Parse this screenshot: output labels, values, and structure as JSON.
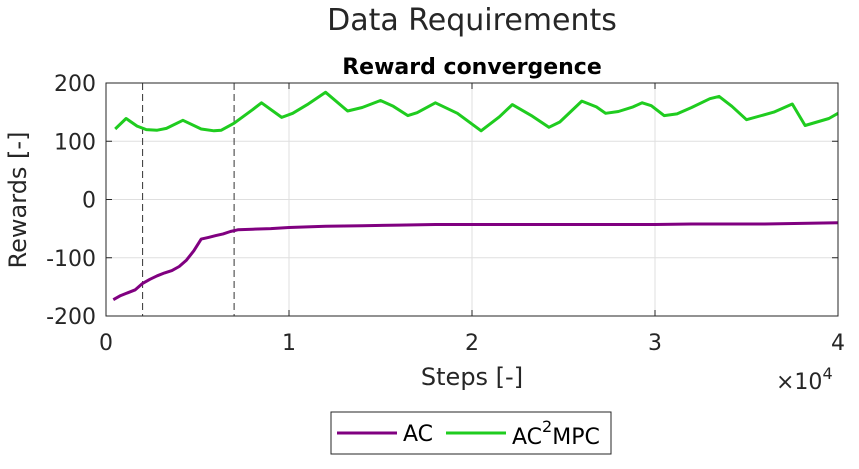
{
  "figure": {
    "suptitle": "Data Requirements"
  },
  "chart_data": {
    "type": "line",
    "title": "Reward convergence",
    "xlabel": "Steps [-]",
    "ylabel": "Rewards [-]",
    "x_multiplier": {
      "base": "×10",
      "exponent": "4"
    },
    "xlim": [
      0,
      40000
    ],
    "ylim": [
      -200,
      200
    ],
    "x_ticks": [
      0,
      10000,
      20000,
      30000,
      40000
    ],
    "x_tick_labels": [
      "0",
      "1",
      "2",
      "3",
      "4"
    ],
    "y_ticks": [
      -200,
      -100,
      0,
      100,
      200
    ],
    "y_tick_labels": [
      "-200",
      "-100",
      "0",
      "100",
      "200"
    ],
    "grid": true,
    "vlines": [
      2000,
      7000
    ],
    "legend_position": "bottom-outside",
    "series": [
      {
        "name": "AC",
        "color": "#800080",
        "x": [
          400,
          800,
          1200,
          1600,
          2000,
          2400,
          2800,
          3200,
          3600,
          4000,
          4400,
          4800,
          5200,
          5600,
          6000,
          6400,
          6800,
          7200,
          8000,
          9000,
          10000,
          11000,
          12000,
          14000,
          16000,
          18000,
          20000,
          22000,
          24000,
          26000,
          28000,
          30000,
          32000,
          34000,
          36000,
          38000,
          40000
        ],
        "y": [
          -172,
          -165,
          -160,
          -155,
          -144,
          -137,
          -131,
          -126,
          -122,
          -115,
          -104,
          -88,
          -68,
          -65,
          -62,
          -59,
          -55,
          -52,
          -51,
          -50,
          -48,
          -47,
          -46,
          -45,
          -44,
          -43,
          -43,
          -43,
          -43,
          -43,
          -43,
          -43,
          -42,
          -42,
          -42,
          -41,
          -40
        ]
      },
      {
        "name": "AC2MPC",
        "name_main": "AC",
        "name_sup": "2",
        "name_tail": "MPC",
        "color": "#1fcc1f",
        "x": [
          500,
          1100,
          1700,
          2200,
          2800,
          3300,
          4200,
          5200,
          5900,
          6300,
          7000,
          8000,
          8500,
          9600,
          10200,
          11000,
          12000,
          13200,
          14000,
          15000,
          15700,
          16500,
          17000,
          18000,
          19200,
          20500,
          21500,
          22200,
          23300,
          24200,
          24800,
          26000,
          26800,
          27300,
          28000,
          28800,
          29300,
          29800,
          30500,
          31200,
          32000,
          33000,
          33500,
          34200,
          35000,
          36500,
          37500,
          38200,
          39500,
          40000
        ],
        "y": [
          121,
          139,
          126,
          120,
          119,
          122,
          136,
          121,
          118,
          119,
          131,
          154,
          166,
          141,
          148,
          163,
          184,
          152,
          158,
          170,
          160,
          144,
          149,
          166,
          148,
          118,
          142,
          163,
          143,
          124,
          133,
          169,
          159,
          148,
          151,
          159,
          166,
          161,
          144,
          147,
          158,
          173,
          177,
          160,
          137,
          150,
          164,
          127,
          139,
          148
        ]
      }
    ]
  }
}
